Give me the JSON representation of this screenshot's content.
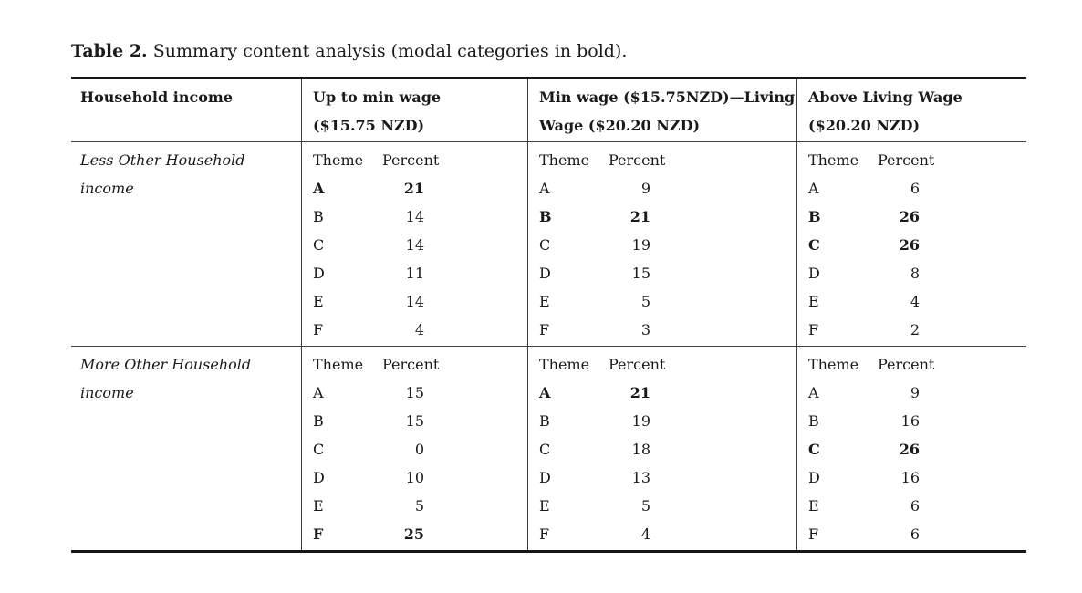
{
  "caption": {
    "label": "Table 2.",
    "text": " Summary content analysis (modal categories in bold)."
  },
  "table": {
    "header": {
      "col0": {
        "line1": "Household income",
        "line2": ""
      },
      "col1": {
        "line1": "Up to min wage",
        "line2": "($15.75 NZD)"
      },
      "col2": {
        "line1": "Min wage ($15.75NZD)—Living",
        "line2": "Wage ($20.20 NZD)"
      },
      "col3": {
        "line1": "Above Living Wage",
        "line2": "($20.20 NZD)"
      }
    },
    "sub_header": {
      "theme": "Theme",
      "percent": "Percent"
    },
    "groups": [
      {
        "label_line1": "Less Other Household",
        "label_line2": "income",
        "subtables": [
          {
            "rows": [
              {
                "theme": "A",
                "percent": 21,
                "modal": true
              },
              {
                "theme": "B",
                "percent": 14,
                "modal": false
              },
              {
                "theme": "C",
                "percent": 14,
                "modal": false
              },
              {
                "theme": "D",
                "percent": 11,
                "modal": false
              },
              {
                "theme": "E",
                "percent": 14,
                "modal": false
              },
              {
                "theme": "F",
                "percent": 4,
                "modal": false
              }
            ]
          },
          {
            "rows": [
              {
                "theme": "A",
                "percent": 9,
                "modal": false
              },
              {
                "theme": "B",
                "percent": 21,
                "modal": true
              },
              {
                "theme": "C",
                "percent": 19,
                "modal": false
              },
              {
                "theme": "D",
                "percent": 15,
                "modal": false
              },
              {
                "theme": "E",
                "percent": 5,
                "modal": false
              },
              {
                "theme": "F",
                "percent": 3,
                "modal": false
              }
            ]
          },
          {
            "rows": [
              {
                "theme": "A",
                "percent": 6,
                "modal": false
              },
              {
                "theme": "B",
                "percent": 26,
                "modal": true
              },
              {
                "theme": "C",
                "percent": 26,
                "modal": true
              },
              {
                "theme": "D",
                "percent": 8,
                "modal": false
              },
              {
                "theme": "E",
                "percent": 4,
                "modal": false
              },
              {
                "theme": "F",
                "percent": 2,
                "modal": false
              }
            ]
          }
        ]
      },
      {
        "label_line1": "More Other Household",
        "label_line2": "income",
        "subtables": [
          {
            "rows": [
              {
                "theme": "A",
                "percent": 15,
                "modal": false
              },
              {
                "theme": "B",
                "percent": 15,
                "modal": false
              },
              {
                "theme": "C",
                "percent": 0,
                "modal": false
              },
              {
                "theme": "D",
                "percent": 10,
                "modal": false
              },
              {
                "theme": "E",
                "percent": 5,
                "modal": false
              },
              {
                "theme": "F",
                "percent": 25,
                "modal": true
              }
            ]
          },
          {
            "rows": [
              {
                "theme": "A",
                "percent": 21,
                "modal": true
              },
              {
                "theme": "B",
                "percent": 19,
                "modal": false
              },
              {
                "theme": "C",
                "percent": 18,
                "modal": false
              },
              {
                "theme": "D",
                "percent": 13,
                "modal": false
              },
              {
                "theme": "E",
                "percent": 5,
                "modal": false
              },
              {
                "theme": "F",
                "percent": 4,
                "modal": false
              }
            ]
          },
          {
            "rows": [
              {
                "theme": "A",
                "percent": 9,
                "modal": false
              },
              {
                "theme": "B",
                "percent": 16,
                "modal": false
              },
              {
                "theme": "C",
                "percent": 26,
                "modal": true
              },
              {
                "theme": "D",
                "percent": 16,
                "modal": false
              },
              {
                "theme": "E",
                "percent": 6,
                "modal": false
              },
              {
                "theme": "F",
                "percent": 6,
                "modal": false
              }
            ]
          }
        ]
      }
    ]
  },
  "colors": {
    "text": "#1a1a1a",
    "rule_thick": "#161616",
    "rule_thin": "#3e3e3e"
  }
}
